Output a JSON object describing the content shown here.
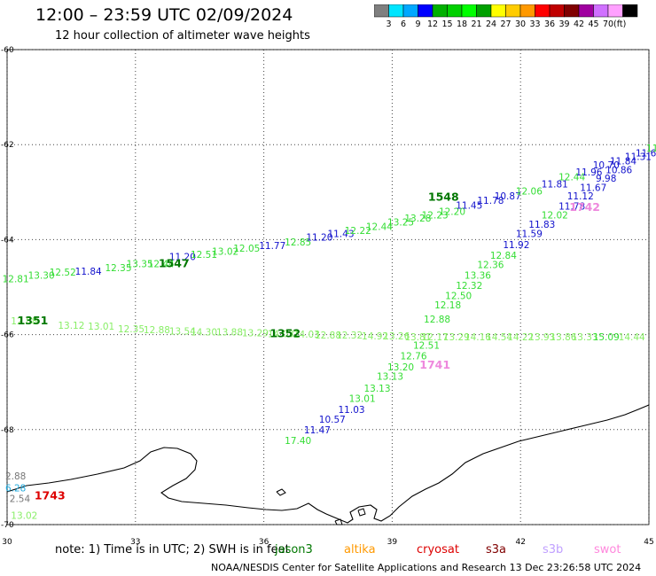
{
  "header": {
    "title": "12:00 – 23:59 UTC 02/09/2024",
    "subtitle": "12 hour collection of altimeter wave heights"
  },
  "colorbar": {
    "unit": "(ft)",
    "items": [
      {
        "label": "",
        "color": "#7f7f7f"
      },
      {
        "label": "3",
        "color": "#00e5ff"
      },
      {
        "label": "6",
        "color": "#00a8ff"
      },
      {
        "label": "9",
        "color": "#0000ff"
      },
      {
        "label": "12",
        "color": "#00b000"
      },
      {
        "label": "15",
        "color": "#00d000"
      },
      {
        "label": "18",
        "color": "#00ff00"
      },
      {
        "label": "21",
        "color": "#00a000"
      },
      {
        "label": "24",
        "color": "#ffff00"
      },
      {
        "label": "27",
        "color": "#ffcc00"
      },
      {
        "label": "30",
        "color": "#ff9900"
      },
      {
        "label": "33",
        "color": "#ff0000"
      },
      {
        "label": "36",
        "color": "#c00000"
      },
      {
        "label": "39",
        "color": "#800000"
      },
      {
        "label": "42",
        "color": "#a000a0"
      },
      {
        "label": "45",
        "color": "#d070ff"
      },
      {
        "label": "70",
        "color": "#ffa0ff"
      },
      {
        "label": "",
        "color": "#000000"
      }
    ]
  },
  "map": {
    "lon_ticks": [
      "30",
      "33",
      "36",
      "39",
      "42",
      "45"
    ],
    "lat_ticks": [
      "-60",
      "-62",
      "-64",
      "-66",
      "-68",
      "-70"
    ],
    "coast_color": "#000000"
  },
  "colors": {
    "green": "#33dd33",
    "lightgreen": "#88ee66",
    "darkgreen": "#007700",
    "blue": "#1111cc",
    "pink": "#ee88dd",
    "red": "#dd0000",
    "gray": "#777777",
    "cyan": "#22aadd"
  },
  "track_labels": [
    {
      "text": "1547",
      "lon": 33.9,
      "lat": -64.58,
      "color": "#007700"
    },
    {
      "text": "1548",
      "lon": 40.2,
      "lat": -63.18,
      "color": "#007700"
    },
    {
      "text": "1351",
      "lon": 30.6,
      "lat": -65.78,
      "color": "#007700"
    },
    {
      "text": "1352",
      "lon": 36.5,
      "lat": -66.05,
      "color": "#007700"
    },
    {
      "text": "1742",
      "lon": 43.5,
      "lat": -63.4,
      "color": "#ee88dd"
    },
    {
      "text": "1741",
      "lon": 40.0,
      "lat": -66.72,
      "color": "#ee88dd"
    },
    {
      "text": "1743",
      "lon": 31.0,
      "lat": -69.47,
      "color": "#dd0000"
    }
  ],
  "observations": [
    {
      "value": "12.81",
      "lon": 30.2,
      "lat": -64.9,
      "color": "#33dd33"
    },
    {
      "value": "13.30",
      "lon": 30.8,
      "lat": -64.82,
      "color": "#33dd33"
    },
    {
      "value": "12.52",
      "lon": 31.3,
      "lat": -64.76,
      "color": "#33dd33"
    },
    {
      "value": "11.84",
      "lon": 31.9,
      "lat": -64.74,
      "color": "#1111cc"
    },
    {
      "value": "12.35",
      "lon": 32.6,
      "lat": -64.66,
      "color": "#33dd33"
    },
    {
      "value": "13.35",
      "lon": 33.1,
      "lat": -64.58,
      "color": "#33dd33"
    },
    {
      "value": "12.44",
      "lon": 33.6,
      "lat": -64.58,
      "color": "#33dd33"
    },
    {
      "value": "11.20",
      "lon": 34.1,
      "lat": -64.43,
      "color": "#1111cc"
    },
    {
      "value": "12.51",
      "lon": 34.6,
      "lat": -64.38,
      "color": "#33dd33"
    },
    {
      "value": "13.02",
      "lon": 35.1,
      "lat": -64.32,
      "color": "#33dd33"
    },
    {
      "value": "12.05",
      "lon": 35.6,
      "lat": -64.25,
      "color": "#33dd33"
    },
    {
      "value": "11.77",
      "lon": 36.2,
      "lat": -64.2,
      "color": "#1111cc"
    },
    {
      "value": "12.85",
      "lon": 36.8,
      "lat": -64.12,
      "color": "#33dd33"
    },
    {
      "value": "11.20",
      "lon": 37.3,
      "lat": -64.02,
      "color": "#1111cc"
    },
    {
      "value": "11.43",
      "lon": 37.8,
      "lat": -63.95,
      "color": "#1111cc"
    },
    {
      "value": "12.22",
      "lon": 38.2,
      "lat": -63.88,
      "color": "#33dd33"
    },
    {
      "value": "12.44",
      "lon": 38.7,
      "lat": -63.8,
      "color": "#33dd33"
    },
    {
      "value": "13.25",
      "lon": 39.2,
      "lat": -63.7,
      "color": "#33dd33"
    },
    {
      "value": "13.28",
      "lon": 39.6,
      "lat": -63.62,
      "color": "#33dd33"
    },
    {
      "value": "12.23",
      "lon": 40.0,
      "lat": -63.55,
      "color": "#33dd33"
    },
    {
      "value": "12.20",
      "lon": 40.4,
      "lat": -63.48,
      "color": "#33dd33"
    },
    {
      "value": "11.45",
      "lon": 40.8,
      "lat": -63.35,
      "color": "#1111cc"
    },
    {
      "value": "11.78",
      "lon": 41.3,
      "lat": -63.25,
      "color": "#1111cc"
    },
    {
      "value": "10.87",
      "lon": 41.7,
      "lat": -63.15,
      "color": "#1111cc"
    },
    {
      "value": "12.06",
      "lon": 42.2,
      "lat": -63.05,
      "color": "#33dd33"
    },
    {
      "value": "11.81",
      "lon": 42.8,
      "lat": -62.9,
      "color": "#1111cc"
    },
    {
      "value": "12.44",
      "lon": 43.2,
      "lat": -62.75,
      "color": "#33dd33"
    },
    {
      "value": "11.96",
      "lon": 43.6,
      "lat": -62.65,
      "color": "#1111cc"
    },
    {
      "value": "10.70",
      "lon": 44.0,
      "lat": -62.5,
      "color": "#1111cc"
    },
    {
      "value": "11.84",
      "lon": 44.4,
      "lat": -62.42,
      "color": "#1111cc"
    },
    {
      "value": "11.31",
      "lon": 44.75,
      "lat": -62.32,
      "color": "#1111cc"
    },
    {
      "value": "11.69",
      "lon": 45.0,
      "lat": -62.25,
      "color": "#1111cc"
    },
    {
      "value": "11.97",
      "lon": 45.25,
      "lat": -62.15,
      "color": "#33dd33"
    },
    {
      "value": "10.4",
      "lon": 45.7,
      "lat": -62.0,
      "color": "#1111cc"
    },
    {
      "value": "11",
      "lon": 45.9,
      "lat": -61.8,
      "color": "#1111cc"
    },
    {
      "value": "10.86",
      "lon": 44.3,
      "lat": -62.6,
      "color": "#1111cc"
    },
    {
      "value": "9.98",
      "lon": 44.0,
      "lat": -62.78,
      "color": "#1111cc"
    },
    {
      "value": "11.67",
      "lon": 43.7,
      "lat": -62.98,
      "color": "#1111cc"
    },
    {
      "value": "11.12",
      "lon": 43.4,
      "lat": -63.15,
      "color": "#1111cc"
    },
    {
      "value": "11.78",
      "lon": 43.2,
      "lat": -63.37,
      "color": "#1111cc"
    },
    {
      "value": "12.02",
      "lon": 42.8,
      "lat": -63.55,
      "color": "#33dd33"
    },
    {
      "value": "11.83",
      "lon": 42.5,
      "lat": -63.75,
      "color": "#1111cc"
    },
    {
      "value": "11.59",
      "lon": 42.2,
      "lat": -63.95,
      "color": "#1111cc"
    },
    {
      "value": "11.92",
      "lon": 41.9,
      "lat": -64.18,
      "color": "#1111cc"
    },
    {
      "value": "12.84",
      "lon": 41.6,
      "lat": -64.4,
      "color": "#33dd33"
    },
    {
      "value": "12.36",
      "lon": 41.3,
      "lat": -64.6,
      "color": "#33dd33"
    },
    {
      "value": "13.36",
      "lon": 41.0,
      "lat": -64.82,
      "color": "#33dd33"
    },
    {
      "value": "12.32",
      "lon": 40.8,
      "lat": -65.04,
      "color": "#33dd33"
    },
    {
      "value": "12.50",
      "lon": 40.55,
      "lat": -65.25,
      "color": "#33dd33"
    },
    {
      "value": "12.18",
      "lon": 40.3,
      "lat": -65.45,
      "color": "#33dd33"
    },
    {
      "value": "12.88",
      "lon": 40.05,
      "lat": -65.75,
      "color": "#33dd33"
    },
    {
      "value": "12.51",
      "lon": 39.8,
      "lat": -66.3,
      "color": "#33dd33"
    },
    {
      "value": "12.76",
      "lon": 39.5,
      "lat": -66.52,
      "color": "#33dd33"
    },
    {
      "value": "13.20",
      "lon": 39.2,
      "lat": -66.75,
      "color": "#33dd33"
    },
    {
      "value": "13.13",
      "lon": 38.95,
      "lat": -66.95,
      "color": "#33dd33"
    },
    {
      "value": "13.13",
      "lon": 38.65,
      "lat": -67.2,
      "color": "#33dd33"
    },
    {
      "value": "13.01",
      "lon": 38.3,
      "lat": -67.42,
      "color": "#33dd33"
    },
    {
      "value": "11.03",
      "lon": 38.05,
      "lat": -67.65,
      "color": "#1111cc"
    },
    {
      "value": "10.57",
      "lon": 37.6,
      "lat": -67.85,
      "color": "#1111cc"
    },
    {
      "value": "11.47",
      "lon": 37.25,
      "lat": -68.08,
      "color": "#1111cc"
    },
    {
      "value": "17.40",
      "lon": 36.8,
      "lat": -68.3,
      "color": "#33dd33"
    },
    {
      "value": "12.88",
      "lon": 30.4,
      "lat": -65.78,
      "color": "#88ee66"
    },
    {
      "value": "13.12",
      "lon": 31.5,
      "lat": -65.88,
      "color": "#88ee66"
    },
    {
      "value": "13.01",
      "lon": 32.2,
      "lat": -65.9,
      "color": "#88ee66"
    },
    {
      "value": "12.35",
      "lon": 32.9,
      "lat": -65.95,
      "color": "#88ee66"
    },
    {
      "value": "12.88",
      "lon": 33.5,
      "lat": -65.97,
      "color": "#88ee66"
    },
    {
      "value": "13.54",
      "lon": 34.1,
      "lat": -66.0,
      "color": "#88ee66"
    },
    {
      "value": "14.30",
      "lon": 34.6,
      "lat": -66.02,
      "color": "#88ee66"
    },
    {
      "value": "13.88",
      "lon": 35.2,
      "lat": -66.02,
      "color": "#88ee66"
    },
    {
      "value": "13.29",
      "lon": 35.8,
      "lat": -66.04,
      "color": "#88ee66"
    },
    {
      "value": "14.03",
      "lon": 36.4,
      "lat": -66.05,
      "color": "#88ee66"
    },
    {
      "value": "14.03",
      "lon": 37.0,
      "lat": -66.06,
      "color": "#88ee66"
    },
    {
      "value": "12.88",
      "lon": 37.5,
      "lat": -66.08,
      "color": "#88ee66"
    },
    {
      "value": "12.32",
      "lon": 38.0,
      "lat": -66.08,
      "color": "#88ee66"
    },
    {
      "value": "14.92",
      "lon": 38.6,
      "lat": -66.1,
      "color": "#88ee66"
    },
    {
      "value": "13.26",
      "lon": 39.1,
      "lat": -66.1,
      "color": "#88ee66"
    },
    {
      "value": "13.81",
      "lon": 39.6,
      "lat": -66.12,
      "color": "#88ee66"
    },
    {
      "value": "12.17",
      "lon": 40.0,
      "lat": -66.12,
      "color": "#88ee66"
    },
    {
      "value": "13.29",
      "lon": 40.5,
      "lat": -66.12,
      "color": "#88ee66"
    },
    {
      "value": "14.16",
      "lon": 41.0,
      "lat": -66.12,
      "color": "#88ee66"
    },
    {
      "value": "14.54",
      "lon": 41.5,
      "lat": -66.12,
      "color": "#88ee66"
    },
    {
      "value": "14.22",
      "lon": 42.0,
      "lat": -66.12,
      "color": "#88ee66"
    },
    {
      "value": "13.93",
      "lon": 42.5,
      "lat": -66.12,
      "color": "#88ee66"
    },
    {
      "value": "13.86",
      "lon": 43.0,
      "lat": -66.12,
      "color": "#88ee66"
    },
    {
      "value": "13.33",
      "lon": 43.5,
      "lat": -66.12,
      "color": "#88ee66"
    },
    {
      "value": "15.09",
      "lon": 44.0,
      "lat": -66.12,
      "color": "#33dd33"
    },
    {
      "value": "14.44",
      "lon": 44.6,
      "lat": -66.12,
      "color": "#88ee66"
    },
    {
      "value": "2.88",
      "lon": 30.2,
      "lat": -69.05,
      "color": "#777777"
    },
    {
      "value": "6.28",
      "lon": 30.2,
      "lat": -69.3,
      "color": "#22aadd"
    },
    {
      "value": "2.54",
      "lon": 30.3,
      "lat": -69.52,
      "color": "#777777"
    },
    {
      "value": "13.02",
      "lon": 30.4,
      "lat": -69.88,
      "color": "#88ee66"
    }
  ],
  "footer": {
    "note": "note:  1) Time is in UTC; 2) SWH is in feet",
    "credit": "NOAA/NESDIS Center for Satellite Applications and Research     13 Dec 23:26:58 UTC 2024",
    "legend": [
      {
        "label": "jason3",
        "color": "#007700"
      },
      {
        "label": "altika",
        "color": "#ff9900"
      },
      {
        "label": "cryosat",
        "color": "#dd0000"
      },
      {
        "label": "s3a",
        "color": "#800000"
      },
      {
        "label": "s3b",
        "color": "#c0a0ff"
      },
      {
        "label": "swot",
        "color": "#ff88dd"
      }
    ]
  }
}
